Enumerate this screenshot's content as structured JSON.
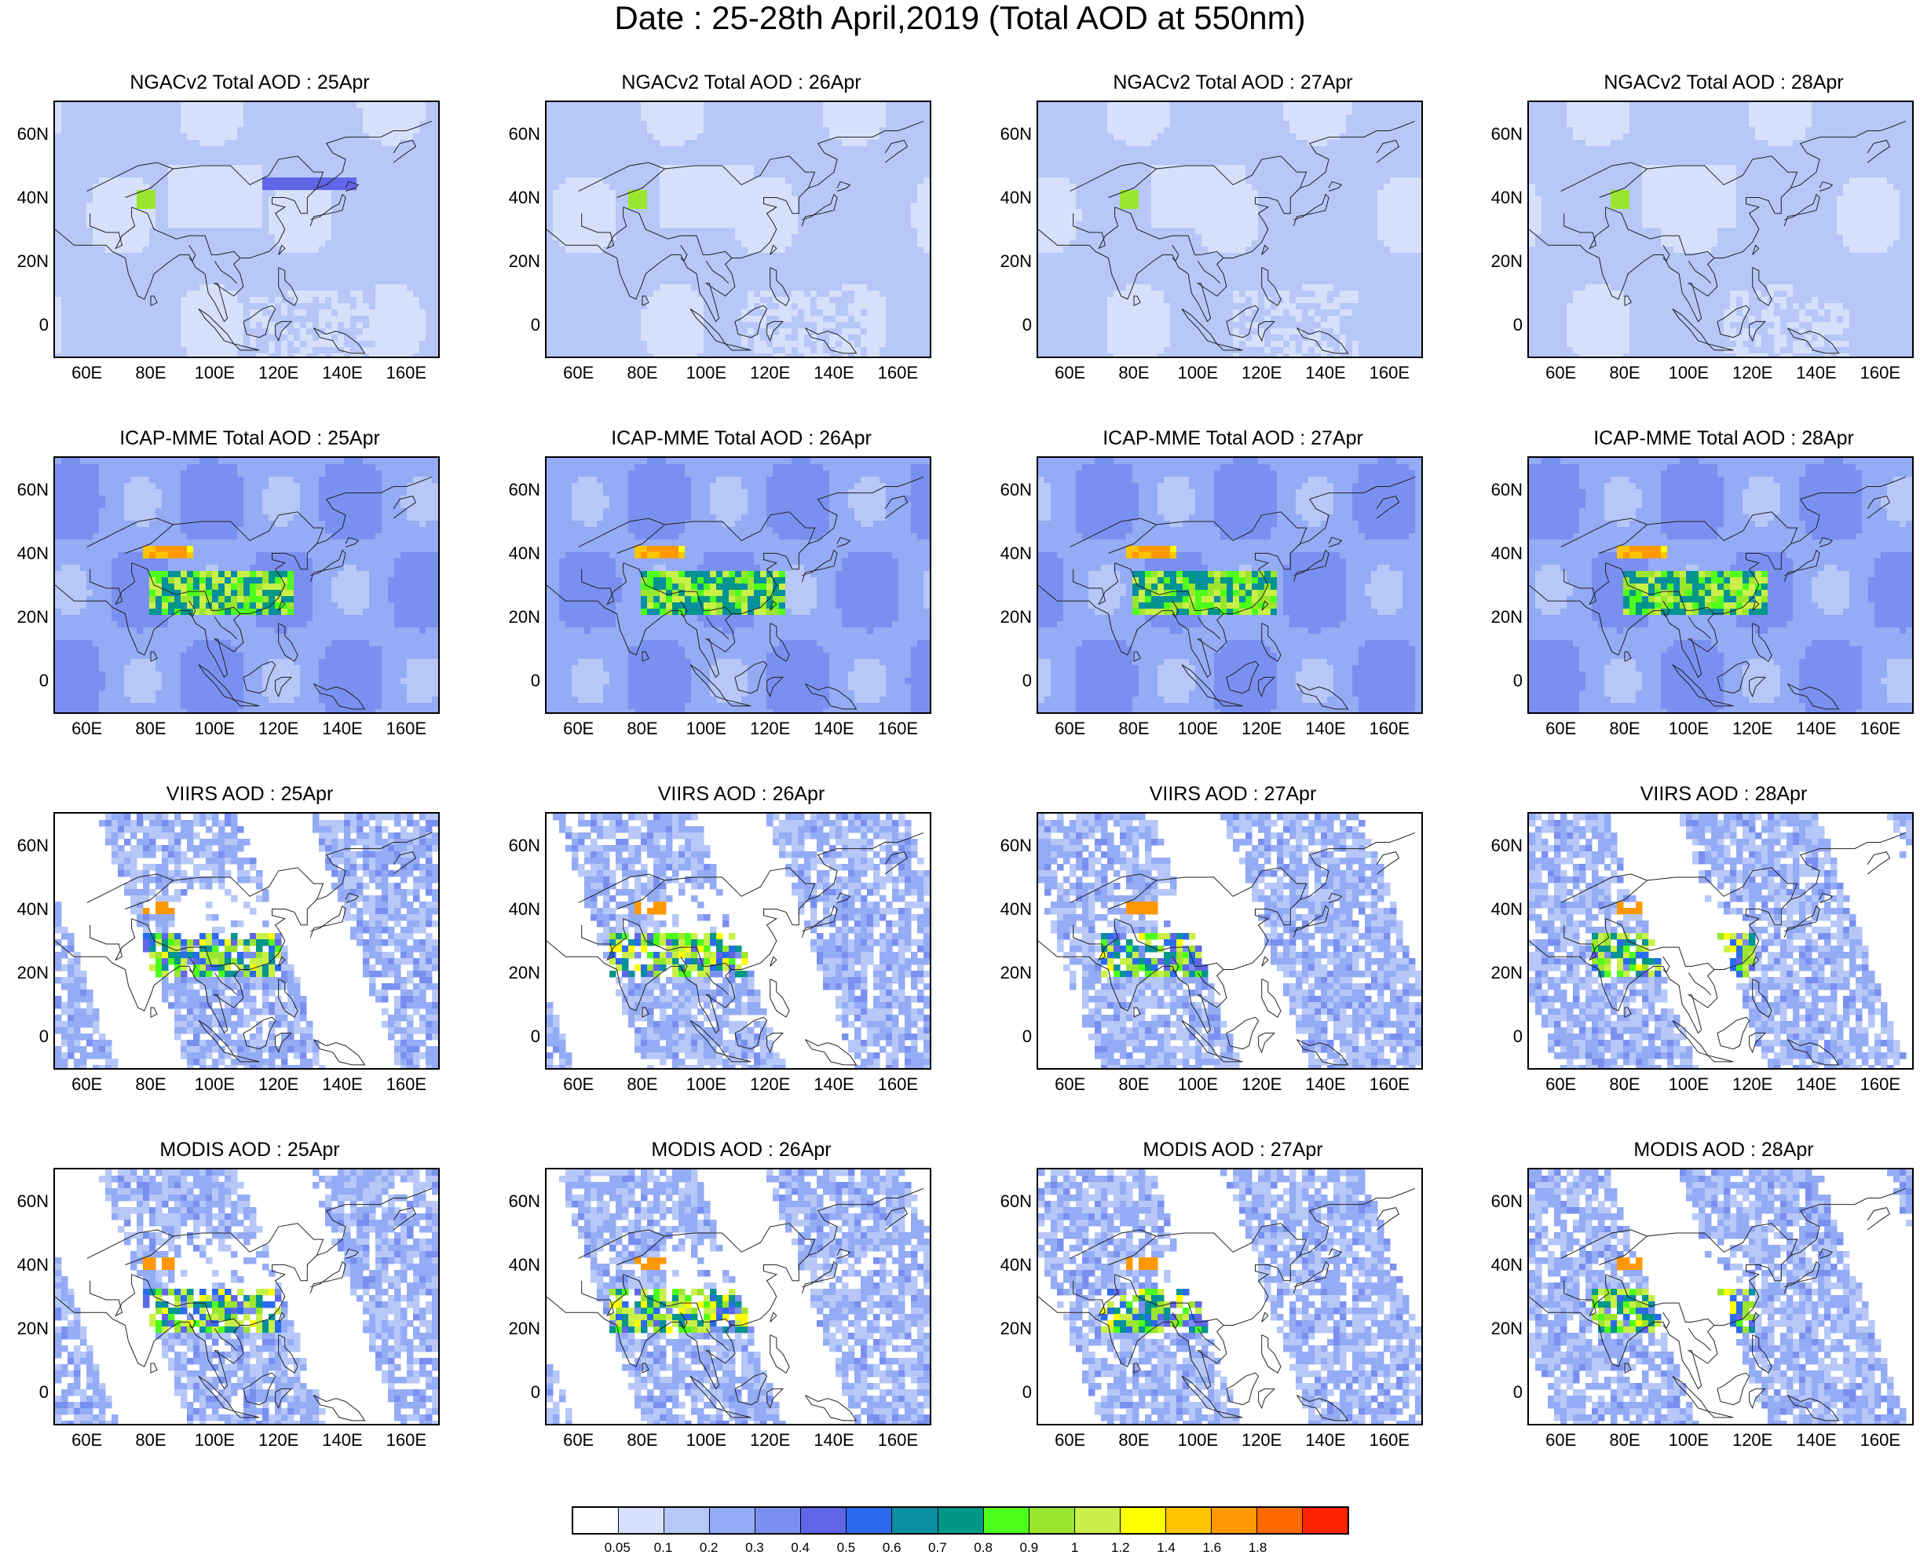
{
  "title": "Date : 25-28th April,2019 (Total AOD at 550nm)",
  "axes": {
    "lon_ticks": [
      "60E",
      "80E",
      "100E",
      "120E",
      "140E",
      "160E"
    ],
    "lat_ticks": [
      "60N",
      "40N",
      "20N",
      "0"
    ],
    "lon_range": [
      50,
      170
    ],
    "lat_range": [
      -10,
      70
    ]
  },
  "panels": [
    {
      "title": "NGACv2 Total AOD : 25Apr"
    },
    {
      "title": "NGACv2 Total AOD : 26Apr"
    },
    {
      "title": "NGACv2 Total AOD : 27Apr"
    },
    {
      "title": "NGACv2 Total AOD : 28Apr"
    },
    {
      "title": "ICAP-MME Total AOD : 25Apr"
    },
    {
      "title": "ICAP-MME Total AOD : 26Apr"
    },
    {
      "title": "ICAP-MME Total AOD : 27Apr"
    },
    {
      "title": "ICAP-MME Total AOD : 28Apr"
    },
    {
      "title": "VIIRS AOD : 25Apr"
    },
    {
      "title": "VIIRS AOD : 26Apr"
    },
    {
      "title": "VIIRS AOD : 27Apr"
    },
    {
      "title": "VIIRS AOD : 28Apr"
    },
    {
      "title": "MODIS AOD : 25Apr"
    },
    {
      "title": "MODIS AOD : 26Apr"
    },
    {
      "title": "MODIS AOD : 27Apr"
    },
    {
      "title": "MODIS AOD : 28Apr"
    }
  ],
  "colorbar": {
    "labels": [
      "0.05",
      "0.1",
      "0.2",
      "0.3",
      "0.4",
      "0.5",
      "0.6",
      "0.7",
      "0.8",
      "0.9",
      "1",
      "1.2",
      "1.4",
      "1.6",
      "1.8"
    ],
    "colors": [
      "#ffffff",
      "#d6e0fb",
      "#b6c7f8",
      "#94abf5",
      "#7a90f0",
      "#5f66e8",
      "#2a6bef",
      "#0a8fa0",
      "#009688",
      "#4dff1a",
      "#9ae62e",
      "#c8f048",
      "#ffff00",
      "#ffc400",
      "#ff9800",
      "#ff6a00",
      "#ff2200"
    ]
  }
}
